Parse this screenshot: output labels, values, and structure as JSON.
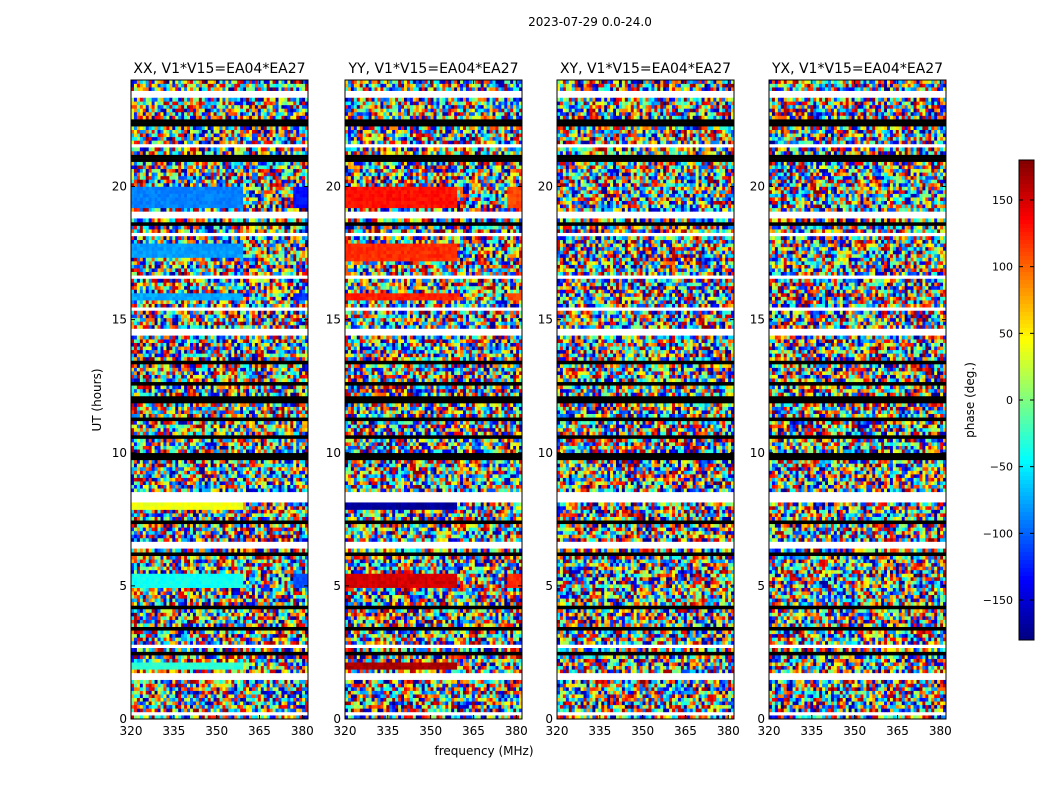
{
  "figure": {
    "suptitle": "2023-07-29 0.0-24.0"
  },
  "chart_data": {
    "type": "heatmap",
    "xlabel": "frequency (MHz)",
    "ylabel": "UT (hours)",
    "xlim": [
      320,
      382
    ],
    "ylim": [
      0,
      24
    ],
    "x_ticks": [
      320,
      335,
      350,
      365,
      380
    ],
    "y_ticks": [
      0,
      5,
      10,
      15,
      20
    ],
    "panels": [
      {
        "title": "XX, V1*V15=EA04*EA27",
        "pol": "XX",
        "coherent_bands": [
          {
            "t": [
              19.2,
              20.0
            ],
            "phase": -90,
            "edge_phase": -130
          },
          {
            "t": [
              17.4,
              17.8
            ],
            "phase": -80
          },
          {
            "t": [
              15.7,
              16.0
            ],
            "phase": -75,
            "edge_phase": -120
          },
          {
            "t": [
              4.9,
              5.4
            ],
            "phase": -40,
            "edge_phase": -110
          },
          {
            "t": [
              7.9,
              8.1
            ],
            "phase": 40
          },
          {
            "t": [
              1.9,
              2.1
            ],
            "phase": -30
          }
        ]
      },
      {
        "title": "YY, V1*V15=EA04*EA27",
        "pol": "YY",
        "coherent_bands": [
          {
            "t": [
              19.2,
              20.0
            ],
            "phase": 130,
            "edge_phase": 110
          },
          {
            "t": [
              17.2,
              17.8
            ],
            "phase": 120
          },
          {
            "t": [
              15.7,
              16.0
            ],
            "phase": 125,
            "edge_phase": 110
          },
          {
            "t": [
              4.9,
              5.4
            ],
            "phase": 150,
            "edge_phase": 120
          },
          {
            "t": [
              7.9,
              8.1
            ],
            "phase": -170
          },
          {
            "t": [
              1.9,
              2.1
            ],
            "phase": 165
          }
        ]
      },
      {
        "title": "XY, V1*V15=EA04*EA27",
        "pol": "XY",
        "coherent_bands": []
      },
      {
        "title": "YX, V1*V15=EA04*EA27",
        "pol": "YX",
        "coherent_bands": []
      }
    ],
    "flagged_rows": [
      [
        23.4,
        23.6
      ],
      [
        21.5,
        21.6
      ],
      [
        18.8,
        19.0
      ],
      [
        18.1,
        18.2
      ],
      [
        16.5,
        16.6
      ],
      [
        15.3,
        15.5
      ],
      [
        14.4,
        14.6
      ],
      [
        8.2,
        8.5
      ],
      [
        6.4,
        6.6
      ],
      [
        2.7,
        2.8
      ],
      [
        1.5,
        1.7
      ],
      [
        0.2,
        0.3
      ]
    ],
    "missing_rows": [
      [
        22.3,
        22.5
      ],
      [
        21.0,
        21.2
      ],
      [
        18.5,
        18.7
      ],
      [
        13.3,
        13.5
      ],
      [
        12.6,
        12.7
      ],
      [
        11.9,
        12.1
      ],
      [
        11.2,
        11.3
      ],
      [
        10.6,
        10.7
      ],
      [
        9.8,
        10.0
      ],
      [
        7.3,
        7.4
      ],
      [
        6.1,
        6.2
      ],
      [
        4.2,
        4.3
      ],
      [
        3.3,
        3.4
      ],
      [
        2.4,
        2.5
      ]
    ],
    "colorbar": {
      "label": "phase (deg.)",
      "range": [
        -180,
        180
      ],
      "ticks": [
        -150,
        -100,
        -50,
        0,
        50,
        100,
        150
      ],
      "colormap": "jet"
    }
  }
}
